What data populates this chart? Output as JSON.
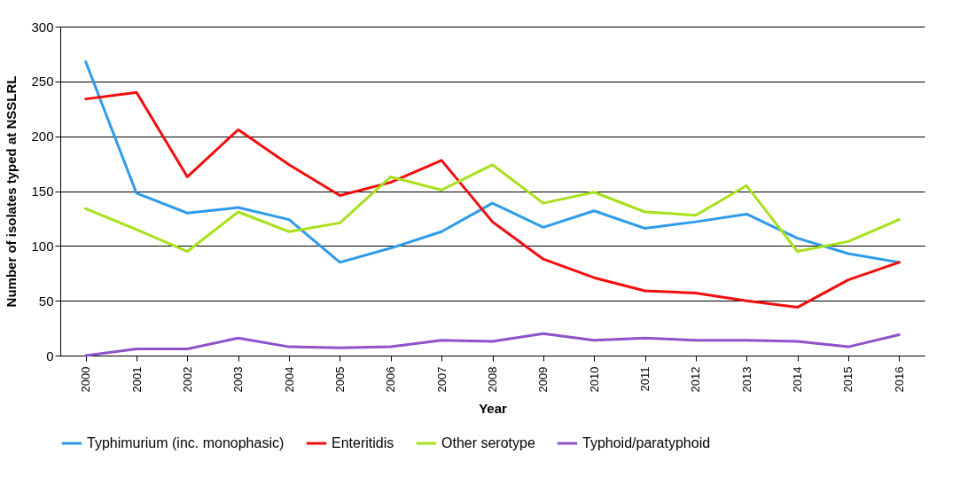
{
  "chart_data": {
    "type": "line",
    "xlabel": "Year",
    "ylabel": "Number of isolates typed at NSSLRL",
    "categories": [
      "2000",
      "2001",
      "2002",
      "2003",
      "2004",
      "2005",
      "2006",
      "2007",
      "2008",
      "2009",
      "2010",
      "2011",
      "2012",
      "2013",
      "2014",
      "2015",
      "2016"
    ],
    "series": [
      {
        "name": "Typhimurium (inc. monophasic)",
        "color": "#2e9bea",
        "values": [
          268,
          148,
          130,
          135,
          124,
          85,
          98,
          113,
          139,
          117,
          132,
          116,
          122,
          129,
          107,
          93,
          85
        ]
      },
      {
        "name": "Enteritidis",
        "color": "#f20d0d",
        "values": [
          234,
          240,
          163,
          206,
          174,
          146,
          158,
          178,
          122,
          88,
          71,
          59,
          57,
          50,
          44,
          69,
          85
        ]
      },
      {
        "name": "Other serotype",
        "color": "#a8e01c",
        "values": [
          134,
          115,
          95,
          131,
          113,
          121,
          163,
          151,
          174,
          139,
          149,
          131,
          128,
          155,
          95,
          104,
          124
        ]
      },
      {
        "name": "Typhoid/paratyphoid",
        "color": "#8e52c9",
        "values": [
          0,
          6,
          6,
          16,
          8,
          7,
          8,
          14,
          13,
          20,
          14,
          16,
          14,
          14,
          13,
          8,
          19
        ]
      }
    ],
    "ylim": [
      0,
      300
    ],
    "yticks": [
      0,
      50,
      100,
      150,
      200,
      250,
      300
    ],
    "grid": "y",
    "legend": "bottom",
    "marker": "none",
    "line_style": "solid"
  }
}
